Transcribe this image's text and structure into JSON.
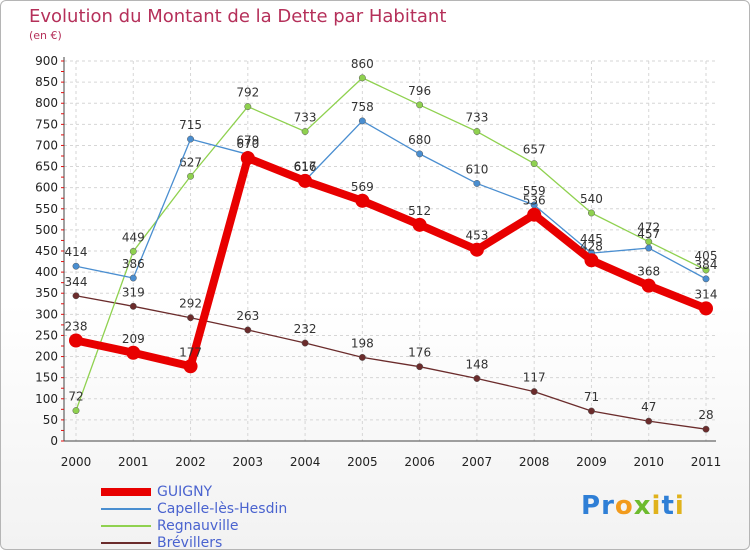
{
  "title": "Evolution du Montant de la Dette par Habitant",
  "subtitle": "(en €)",
  "logo": {
    "text": "Proxiti",
    "letters": [
      {
        "ch": "P",
        "color": "#2f7fd6"
      },
      {
        "ch": "r",
        "color": "#2f7fd6"
      },
      {
        "ch": "o",
        "color": "#f29b1d"
      },
      {
        "ch": "x",
        "color": "#6dbb2e"
      },
      {
        "ch": "i",
        "color": "#e0b21c"
      },
      {
        "ch": "t",
        "color": "#2f7fd6"
      },
      {
        "ch": "i",
        "color": "#e0b21c"
      }
    ]
  },
  "chart_data": {
    "type": "line",
    "x": [
      2000,
      2001,
      2002,
      2003,
      2004,
      2005,
      2006,
      2007,
      2008,
      2009,
      2010,
      2011
    ],
    "ylim": [
      0,
      900
    ],
    "yticks": [
      0,
      50,
      100,
      150,
      200,
      250,
      300,
      350,
      400,
      450,
      500,
      550,
      600,
      650,
      700,
      750,
      800,
      850,
      900
    ],
    "grid": true,
    "legend": "bottom-left",
    "series": [
      {
        "name": "GUIGNY",
        "color": "#e80000",
        "values": [
          238,
          209,
          177,
          670,
          616,
          569,
          512,
          453,
          536,
          428,
          368,
          314
        ]
      },
      {
        "name": "Capelle-lès-Hesdin",
        "color": "#4a8ed0",
        "values": [
          414,
          386,
          715,
          679,
          617,
          758,
          680,
          610,
          559,
          445,
          457,
          384
        ]
      },
      {
        "name": "Regnauville",
        "color": "#8fd14f",
        "values": [
          72,
          449,
          627,
          792,
          733,
          860,
          796,
          733,
          657,
          540,
          472,
          405
        ]
      },
      {
        "name": "Brévillers",
        "color": "#6b2c2c",
        "values": [
          344,
          319,
          292,
          263,
          232,
          198,
          176,
          148,
          117,
          71,
          47,
          28
        ]
      }
    ]
  }
}
